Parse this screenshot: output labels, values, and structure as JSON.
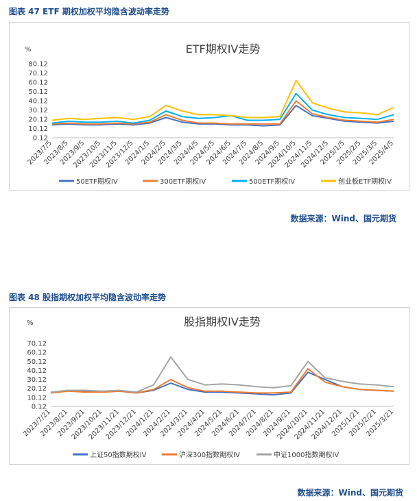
{
  "figures": [
    {
      "caption": "图表 47  ETF 期权加权平均隐含波动率走势",
      "source": "数据来源：Wind、国元期货"
    },
    {
      "caption": "图表 48  股指期权加权平均隐含波动率走势",
      "source": "数据来源：Wind、国元期货"
    }
  ],
  "chart_data": [
    {
      "type": "line",
      "title": "ETF期权IV走势",
      "ylabel": "%",
      "ylim": [
        0.12,
        80.12
      ],
      "yticks": [
        "80.12",
        "70.12",
        "60.12",
        "50.12",
        "40.12",
        "30.12",
        "20.12",
        "10.12",
        "0.12"
      ],
      "categories": [
        "2023/7/5",
        "2023/8/5",
        "2023/9/5",
        "2023/10/5",
        "2023/11/5",
        "2023/12/5",
        "2024/1/5",
        "2024/2/5",
        "2024/3/5",
        "2024/4/5",
        "2024/5/5",
        "2024/6/5",
        "2024/7/5",
        "2024/8/5",
        "2024/9/5",
        "2024/10/5",
        "2024/11/5",
        "2024/12/5",
        "2025/1/5",
        "2025/2/5",
        "2025/3/5",
        "2025/4/5"
      ],
      "legend_position": "bottom",
      "series": [
        {
          "name": "50ETF期权IV",
          "color": "#4472c4",
          "values": [
            14,
            15,
            14,
            14,
            15,
            14,
            16,
            22,
            17,
            15,
            15,
            14,
            14,
            13,
            14,
            35,
            24,
            21,
            18,
            17,
            16,
            18
          ]
        },
        {
          "name": "300ETF期权IV",
          "color": "#ed7d31",
          "values": [
            15,
            16,
            15,
            15,
            16,
            15,
            17,
            25,
            19,
            16,
            16,
            15,
            15,
            15,
            15,
            40,
            26,
            22,
            19,
            18,
            17,
            20
          ]
        },
        {
          "name": "500ETF期权IV",
          "color": "#00b0f0",
          "values": [
            16,
            18,
            17,
            17,
            18,
            16,
            19,
            29,
            23,
            21,
            22,
            24,
            19,
            19,
            20,
            48,
            30,
            25,
            22,
            21,
            20,
            25
          ]
        },
        {
          "name": "创业板ETF期权IV",
          "color": "#ffc000",
          "values": [
            19,
            21,
            20,
            21,
            22,
            20,
            23,
            35,
            29,
            25,
            25,
            24,
            22,
            22,
            23,
            62,
            38,
            32,
            28,
            27,
            25,
            33
          ]
        }
      ]
    },
    {
      "type": "line",
      "title": "股指期权IV走势",
      "ylabel": "%",
      "ylim": [
        0.12,
        70.12
      ],
      "yticks": [
        "70.12",
        "60.12",
        "50.12",
        "40.12",
        "30.12",
        "20.12",
        "10.12",
        "0.12"
      ],
      "categories": [
        "2023/7/21",
        "2023/8/21",
        "2023/9/21",
        "2023/10/21",
        "2023/11/21",
        "2023/12/21",
        "2024/1/21",
        "2024/2/21",
        "2024/3/21",
        "2024/4/21",
        "2024/5/21",
        "2024/6/21",
        "2024/7/21",
        "2024/8/21",
        "2024/9/21",
        "2024/10/21",
        "2024/11/21",
        "2024/12/21",
        "2025/1/21",
        "2025/2/21",
        "2025/3/21"
      ],
      "legend_position": "bottom",
      "series": [
        {
          "name": "上证50指数期权IV",
          "color": "#4472c4",
          "values": [
            15,
            18,
            17,
            16,
            17,
            15,
            18,
            26,
            19,
            16,
            16,
            15,
            14,
            13,
            15,
            38,
            30,
            22,
            19,
            18,
            17
          ]
        },
        {
          "name": "沪深300指数期权IV",
          "color": "#ed7d31",
          "values": [
            15,
            17,
            16,
            16,
            17,
            15,
            19,
            30,
            21,
            17,
            17,
            16,
            15,
            15,
            16,
            42,
            27,
            22,
            19,
            18,
            17
          ]
        },
        {
          "name": "中证1000指数期权IV",
          "color": "#a5a5a5",
          "values": [
            16,
            18,
            18,
            17,
            18,
            16,
            24,
            55,
            30,
            24,
            25,
            24,
            22,
            21,
            23,
            50,
            32,
            28,
            25,
            24,
            22
          ]
        }
      ]
    }
  ]
}
